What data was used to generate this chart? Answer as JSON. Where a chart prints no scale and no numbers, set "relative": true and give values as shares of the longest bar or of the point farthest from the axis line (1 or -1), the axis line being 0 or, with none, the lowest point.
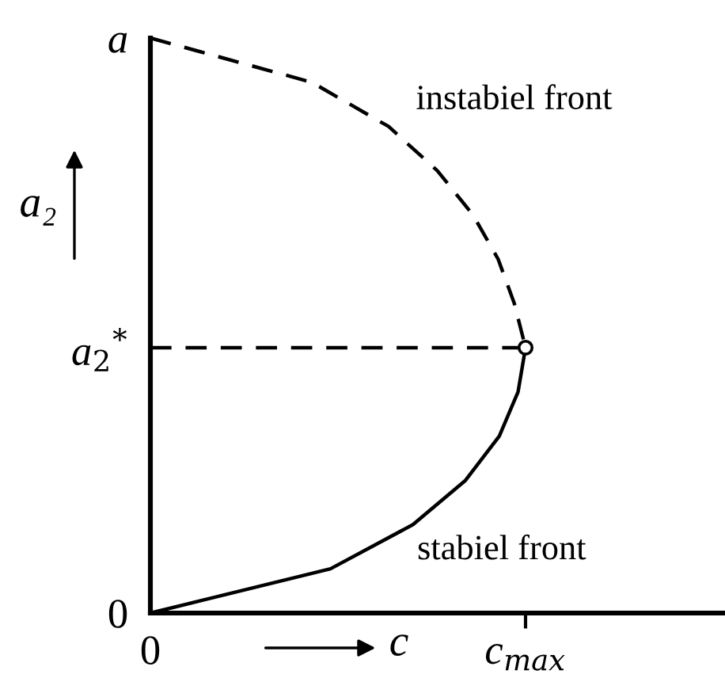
{
  "chart_data": {
    "type": "line",
    "orientation": "horizontal",
    "relative": true,
    "xlabel": "c",
    "ylabel": "a₂",
    "categories": [
      "a",
      null,
      null,
      null,
      null,
      null,
      null,
      "a$_{2}$$^{*}$",
      null,
      null,
      null,
      null,
      null,
      "0"
    ],
    "annotations": [
      "0",
      "c$_{max}$"
    ],
    "series": [
      {
        "name": "instabiel front",
        "line_style": "dashed",
        "color": "#000000",
        "values": [
          0,
          0.43,
          0.635,
          0.765,
          0.86,
          0.927,
          0.97,
          1,
          null,
          null,
          null,
          null,
          null,
          null
        ]
      },
      {
        "name": "stabiel front",
        "line_style": "solid",
        "color": "#000000",
        "values": [
          null,
          null,
          null,
          null,
          null,
          null,
          null,
          1,
          0.98,
          0.93,
          0.84,
          0.7,
          0.48,
          0
        ]
      },
      {
        "type": "lollipop",
        "line_style": "dashed",
        "marker": "circle",
        "color": "#000000",
        "values": [
          null,
          null,
          null,
          null,
          null,
          null,
          null,
          1,
          null,
          null,
          null,
          null,
          null,
          null
        ]
      }
    ]
  }
}
